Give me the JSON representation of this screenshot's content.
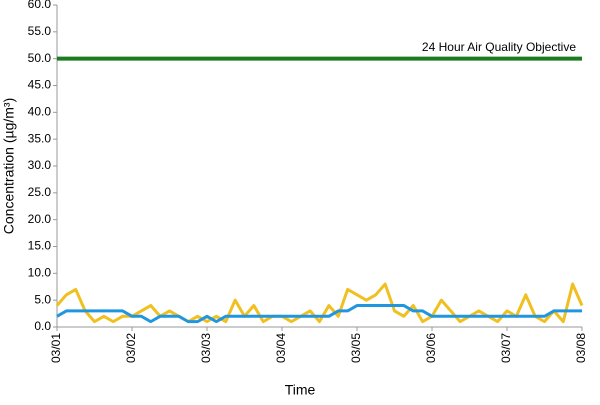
{
  "chart_data": {
    "type": "line",
    "x_label": "Time",
    "y_label": "Concentration (µg/m³)",
    "categories": [
      "03/01",
      null,
      null,
      null,
      null,
      null,
      null,
      null,
      "03/02",
      null,
      null,
      null,
      null,
      null,
      null,
      null,
      "03/03",
      null,
      null,
      null,
      null,
      null,
      null,
      null,
      "03/04",
      null,
      null,
      null,
      null,
      null,
      null,
      null,
      "03/05",
      null,
      null,
      null,
      null,
      null,
      null,
      null,
      "03/06",
      null,
      null,
      null,
      null,
      null,
      null,
      null,
      "03/07",
      null,
      null,
      null,
      null,
      null,
      null,
      null,
      "03/08"
    ],
    "series": [
      {
        "color": "#f0c020",
        "values": [
          4,
          6,
          7,
          3,
          1,
          2,
          1,
          2,
          2,
          3,
          4,
          2,
          3,
          2,
          1,
          2,
          1,
          2,
          1,
          5,
          2,
          4,
          1,
          2,
          2,
          1,
          2,
          3,
          1,
          4,
          2,
          7,
          6,
          5,
          6,
          8,
          3,
          2,
          4,
          1,
          2,
          5,
          3,
          1,
          2,
          3,
          2,
          1,
          3,
          2,
          6,
          2,
          1,
          3,
          1,
          8,
          4
        ]
      },
      {
        "color": "#2196e0",
        "values": [
          2,
          3,
          3,
          3,
          3,
          3,
          3,
          3,
          2,
          2,
          1,
          2,
          2,
          2,
          1,
          1,
          2,
          1,
          2,
          2,
          2,
          2,
          2,
          2,
          2,
          2,
          2,
          2,
          2,
          2,
          3,
          3,
          4,
          4,
          4,
          4,
          4,
          4,
          3,
          3,
          2,
          2,
          2,
          2,
          2,
          2,
          2,
          2,
          2,
          2,
          2,
          2,
          2,
          3,
          3,
          3,
          3
        ]
      }
    ],
    "reference_line": {
      "value": 50,
      "label": "24 Hour Air Quality Objective",
      "color": "#1e7a1e"
    },
    "ylim": [
      0,
      60
    ],
    "yticks": [
      {
        "value": 0,
        "label": "0.0"
      },
      {
        "value": 5,
        "label": "5.0"
      },
      {
        "value": 10,
        "label": "10.0"
      },
      {
        "value": 15,
        "label": "15.0"
      },
      {
        "value": 20,
        "label": "20.0"
      },
      {
        "value": 25,
        "label": "25.0"
      },
      {
        "value": 30,
        "label": "30.0"
      },
      {
        "value": 35,
        "label": "35.0"
      },
      {
        "value": 40,
        "label": "40.0"
      },
      {
        "value": 45,
        "label": "45.0"
      },
      {
        "value": 50,
        "label": "50.0"
      },
      {
        "value": 55,
        "label": "55.0"
      },
      {
        "value": 60,
        "label": "60.0"
      }
    ]
  }
}
